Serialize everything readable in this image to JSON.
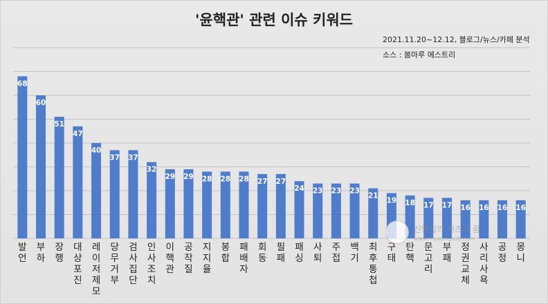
{
  "chart_data": {
    "type": "bar",
    "title": "'윤핵관' 관련 이슈 키워드",
    "subtitle": "2021.11.20~12.12, 블로그/뉴스/카페 분석",
    "source": "소스 : 봄마루 에스트리",
    "categories": [
      "발언",
      "부하",
      "장행",
      "대상포진",
      "레이저제모",
      "당무거부",
      "검사집단",
      "인사조치",
      "이핵관",
      "공작질",
      "지지율",
      "봉합",
      "패배자",
      "회동",
      "필패",
      "패싱",
      "사퇴",
      "주접",
      "백기",
      "최후통첩",
      "구태",
      "탄핵",
      "문고리",
      "부패",
      "정권교체",
      "사리사욕",
      "공정",
      "몽니"
    ],
    "values": [
      68,
      60,
      51,
      47,
      40,
      37,
      37,
      32,
      29,
      29,
      28,
      28,
      28,
      27,
      27,
      24,
      23,
      23,
      23,
      21,
      19,
      18,
      17,
      17,
      16,
      16,
      16,
      16
    ],
    "ylim": [
      0,
      80
    ],
    "grid": true,
    "bar_color": "#4f7ccb"
  },
  "watermark": {
    "text": "신명섭의 하츠의 꿈",
    "url": "www.myoungsub.com"
  }
}
